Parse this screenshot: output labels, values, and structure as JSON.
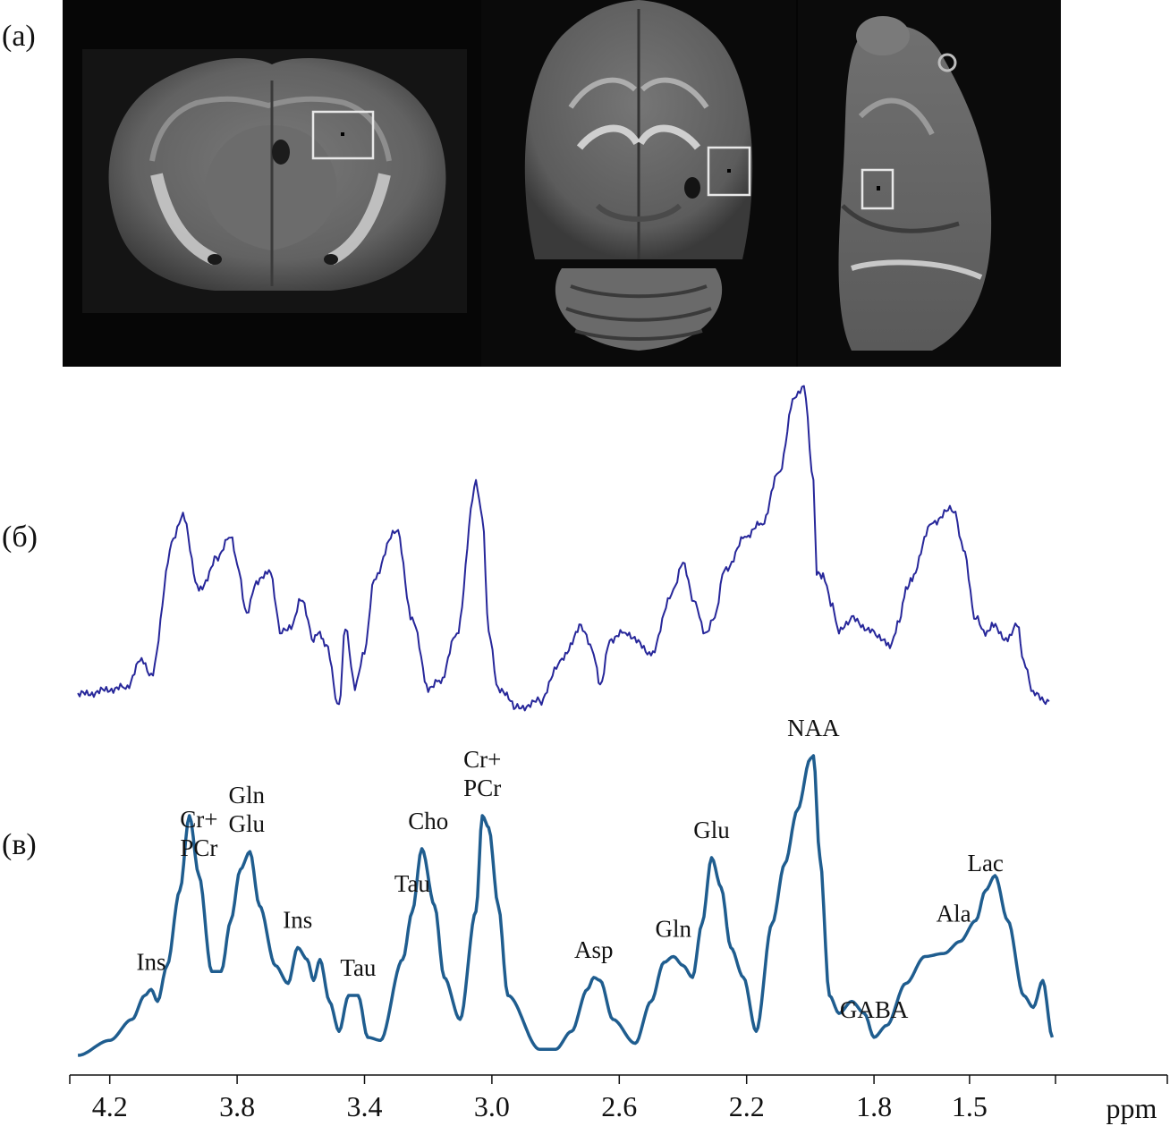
{
  "panels": {
    "a": "(a)",
    "b": "(б)",
    "c": "(в)"
  },
  "colors": {
    "measured_spectrum": "#27279a",
    "model_spectrum": "#1f5d8f",
    "voi_box": "#e8e8e8",
    "mri_background": "#050505"
  },
  "mri_views": [
    "coronal",
    "axial",
    "sagittal"
  ],
  "chart_data": [
    {
      "type": "line",
      "panel": "(б)",
      "x_reversed": true,
      "xlim": [
        4.32,
        1.23
      ],
      "x": [
        4.3,
        4.15,
        4.1,
        4.07,
        4.0,
        3.97,
        3.92,
        3.86,
        3.82,
        3.8,
        3.77,
        3.74,
        3.7,
        3.66,
        3.63,
        3.6,
        3.56,
        3.54,
        3.52,
        3.48,
        3.46,
        3.43,
        3.4,
        3.37,
        3.3,
        3.25,
        3.2,
        3.16,
        3.11,
        3.05,
        3.03,
        3.01,
        2.98,
        2.92,
        2.85,
        2.78,
        2.72,
        2.68,
        2.66,
        2.63,
        2.58,
        2.5,
        2.43,
        2.4,
        2.36,
        2.33,
        2.3,
        2.27,
        2.2,
        2.15,
        2.1,
        2.05,
        2.02,
        1.99,
        1.98,
        1.96,
        1.93,
        1.91,
        1.87,
        1.8,
        1.75,
        1.72,
        1.7,
        1.68,
        1.62,
        1.55,
        1.52,
        1.48,
        1.45,
        1.43,
        1.38,
        1.35,
        1.33,
        1.3,
        1.25
      ],
      "y": [
        0.1,
        0.12,
        0.2,
        0.16,
        0.55,
        0.62,
        0.4,
        0.5,
        0.56,
        0.48,
        0.34,
        0.42,
        0.46,
        0.28,
        0.3,
        0.38,
        0.26,
        0.28,
        0.24,
        0.06,
        0.3,
        0.12,
        0.22,
        0.44,
        0.58,
        0.32,
        0.12,
        0.14,
        0.28,
        0.71,
        0.62,
        0.28,
        0.12,
        0.06,
        0.08,
        0.2,
        0.3,
        0.22,
        0.12,
        0.26,
        0.28,
        0.22,
        0.4,
        0.48,
        0.36,
        0.28,
        0.32,
        0.46,
        0.56,
        0.6,
        0.74,
        0.96,
        1.0,
        0.72,
        0.46,
        0.44,
        0.36,
        0.28,
        0.32,
        0.28,
        0.24,
        0.32,
        0.4,
        0.44,
        0.6,
        0.64,
        0.52,
        0.32,
        0.28,
        0.3,
        0.26,
        0.3,
        0.2,
        0.1,
        0.08
      ],
      "ylim": [
        0,
        1
      ],
      "xlabel": "",
      "ylabel": ""
    },
    {
      "type": "line",
      "panel": "(в)",
      "x_reversed": true,
      "xlim": [
        4.32,
        1.23
      ],
      "x": [
        4.3,
        4.2,
        4.13,
        4.09,
        4.07,
        4.05,
        4.02,
        3.98,
        3.95,
        3.92,
        3.88,
        3.85,
        3.82,
        3.79,
        3.76,
        3.73,
        3.68,
        3.64,
        3.61,
        3.58,
        3.56,
        3.54,
        3.51,
        3.48,
        3.45,
        3.42,
        3.39,
        3.35,
        3.28,
        3.25,
        3.22,
        3.18,
        3.15,
        3.1,
        3.05,
        3.03,
        3.01,
        2.98,
        2.95,
        2.85,
        2.8,
        2.75,
        2.7,
        2.68,
        2.66,
        2.62,
        2.55,
        2.5,
        2.46,
        2.43,
        2.4,
        2.37,
        2.34,
        2.31,
        2.28,
        2.25,
        2.21,
        2.17,
        2.12,
        2.08,
        2.04,
        2.0,
        1.99,
        1.97,
        1.94,
        1.91,
        1.87,
        1.83,
        1.8,
        1.76,
        1.7,
        1.64,
        1.58,
        1.53,
        1.48,
        1.45,
        1.42,
        1.38,
        1.33,
        1.3,
        1.27,
        1.24
      ],
      "y": [
        0.0,
        0.05,
        0.12,
        0.2,
        0.22,
        0.18,
        0.3,
        0.55,
        0.8,
        0.6,
        0.28,
        0.28,
        0.45,
        0.62,
        0.68,
        0.5,
        0.3,
        0.24,
        0.36,
        0.32,
        0.25,
        0.32,
        0.18,
        0.08,
        0.2,
        0.2,
        0.06,
        0.05,
        0.32,
        0.48,
        0.69,
        0.5,
        0.26,
        0.12,
        0.48,
        0.8,
        0.76,
        0.5,
        0.2,
        0.02,
        0.02,
        0.08,
        0.22,
        0.26,
        0.25,
        0.12,
        0.04,
        0.18,
        0.31,
        0.33,
        0.3,
        0.26,
        0.44,
        0.66,
        0.56,
        0.36,
        0.26,
        0.08,
        0.44,
        0.64,
        0.82,
        0.99,
        1.0,
        0.66,
        0.2,
        0.14,
        0.18,
        0.14,
        0.06,
        0.1,
        0.24,
        0.33,
        0.34,
        0.38,
        0.45,
        0.55,
        0.6,
        0.45,
        0.2,
        0.16,
        0.25,
        0.06
      ],
      "ylim": [
        0,
        1
      ],
      "peak_labels": [
        {
          "text": "Ins",
          "x": 4.07
        },
        {
          "text": "Cr+",
          "x": 3.92
        },
        {
          "text": "PCr",
          "x": 3.92
        },
        {
          "text": "Gln",
          "x": 3.77
        },
        {
          "text": "Glu",
          "x": 3.77
        },
        {
          "text": "Ins",
          "x": 3.61
        },
        {
          "text": "Tau",
          "x": 3.42
        },
        {
          "text": "Tau",
          "x": 3.25
        },
        {
          "text": "Cho",
          "x": 3.2
        },
        {
          "text": "Cr+",
          "x": 3.03
        },
        {
          "text": "PCr",
          "x": 3.03
        },
        {
          "text": "Asp",
          "x": 2.68
        },
        {
          "text": "Gln",
          "x": 2.43
        },
        {
          "text": "Glu",
          "x": 2.31
        },
        {
          "text": "NAA",
          "x": 1.99
        },
        {
          "text": "GABA",
          "x": 1.8
        },
        {
          "text": "Ala",
          "x": 1.55
        },
        {
          "text": "Lac",
          "x": 1.45
        }
      ],
      "x_ticks": [
        "4.2",
        "3.8",
        "3.4",
        "3.0",
        "2.6",
        "2.2",
        "1.8",
        "1.5"
      ],
      "x_tick_values": [
        4.2,
        3.8,
        3.4,
        3.0,
        2.6,
        2.2,
        1.8,
        1.5
      ],
      "xlabel": "ppm",
      "ylabel": ""
    }
  ]
}
